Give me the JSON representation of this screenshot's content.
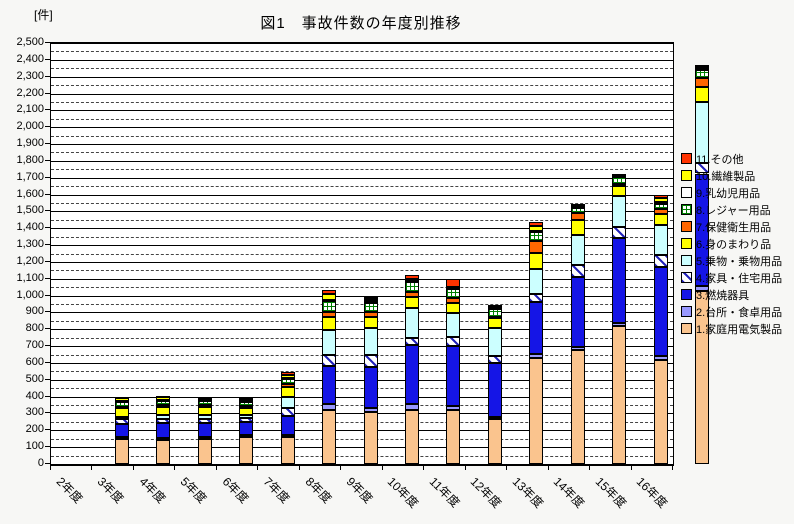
{
  "title": "図1　事故件数の年度別推移",
  "y_axis": {
    "unit_label": "[件]"
  },
  "chart_data": {
    "type": "bar",
    "stacked": true,
    "title": "図1　事故件数の年度別推移",
    "ylabel": "[件]",
    "xlabel": "",
    "ylim": [
      0,
      2500
    ],
    "y_major_step": 100,
    "y_minor_step": 50,
    "grid": "major-solid, minor-dashed",
    "legend_position": "right",
    "x_label_rotation_deg": 45,
    "categories": [
      "2年度",
      "3年度",
      "4年度",
      "5年度",
      "6年度",
      "7年度",
      "8年度",
      "9年度",
      "10年度",
      "11年度",
      "12年度",
      "13年度",
      "14年度",
      "15年度",
      "16年度"
    ],
    "series": [
      {
        "name": "1.家庭用電気製品",
        "color": "#FAC48E",
        "pattern": "solid",
        "values": [
          150,
          145,
          150,
          160,
          160,
          320,
          310,
          320,
          320,
          265,
          630,
          675,
          820,
          615,
          1030
        ]
      },
      {
        "name": "2.台所・食卓用品",
        "color": "#9999FF",
        "pattern": "solid",
        "values": [
          10,
          10,
          10,
          10,
          10,
          35,
          25,
          35,
          25,
          15,
          25,
          20,
          15,
          25,
          25
        ]
      },
      {
        "name": "3.燃焼器具",
        "color": "#1515E6",
        "pattern": "solid",
        "values": [
          80,
          90,
          85,
          80,
          115,
          225,
          240,
          350,
          355,
          320,
          305,
          415,
          505,
          530,
          670
        ]
      },
      {
        "name": "4.家具・住宅用品",
        "color": "#2222BB",
        "pattern": "diagonal-hatch",
        "values": [
          25,
          25,
          25,
          25,
          45,
          70,
          75,
          45,
          55,
          40,
          50,
          70,
          65,
          70,
          60
        ]
      },
      {
        "name": "5.乗物・乗物用品",
        "color": "#CCFFFF",
        "pattern": "solid",
        "values": [
          12,
          20,
          20,
          15,
          70,
          145,
          160,
          175,
          140,
          170,
          145,
          180,
          185,
          180,
          365
        ]
      },
      {
        "name": "6.身のまわり品",
        "color": "#FFFF00",
        "pattern": "solid",
        "values": [
          55,
          50,
          50,
          45,
          55,
          80,
          65,
          65,
          60,
          55,
          100,
          90,
          60,
          65,
          90
        ]
      },
      {
        "name": "7.保健衛生用品",
        "color": "#FF6600",
        "pattern": "solid",
        "values": [
          8,
          10,
          10,
          8,
          20,
          25,
          25,
          30,
          30,
          10,
          70,
          40,
          10,
          30,
          50
        ]
      },
      {
        "name": "8.レジャー用品",
        "color": "#008000",
        "pattern": "green-grid",
        "values": [
          30,
          25,
          25,
          25,
          30,
          65,
          55,
          60,
          55,
          45,
          50,
          30,
          45,
          30,
          50
        ]
      },
      {
        "name": "9.乳幼児用品",
        "color": "#FFFFFF",
        "pattern": "solid",
        "values": [
          5,
          5,
          5,
          5,
          5,
          10,
          10,
          5,
          5,
          5,
          10,
          5,
          5,
          10,
          5
        ]
      },
      {
        "name": "10.繊維製品",
        "color": "#FFFF00",
        "pattern": "solid",
        "values": [
          15,
          15,
          10,
          10,
          20,
          35,
          15,
          15,
          5,
          10,
          30,
          10,
          10,
          25,
          15
        ]
      },
      {
        "name": "11.その他",
        "color": "#FF3300",
        "pattern": "solid",
        "values": [
          10,
          10,
          10,
          7,
          15,
          25,
          10,
          20,
          50,
          10,
          25,
          10,
          5,
          20,
          10
        ]
      }
    ]
  }
}
